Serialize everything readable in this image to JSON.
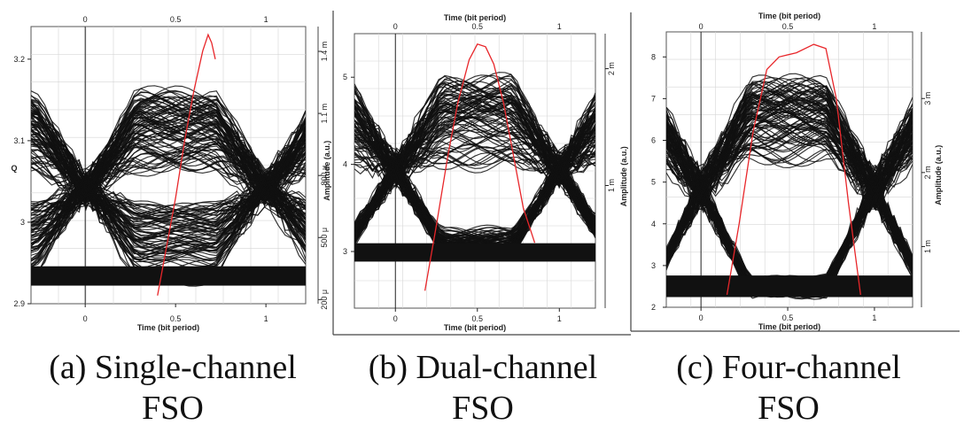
{
  "chart_data": [
    {
      "type": "eye-diagram",
      "xlabel_top": "",
      "xlabel_bottom": "Time (bit period)",
      "ylabel_left": "Q",
      "ylabel_right": "Amplitude (a.u.)",
      "x_ticks": [
        "0",
        "0.5",
        "1"
      ],
      "y_left_ticks": [
        "3.2",
        "3.1",
        "3",
        "2.9"
      ],
      "y_right_ticks": [
        "1.4 m",
        "1.1 m",
        "800 μ",
        "500 μ",
        "200 μ"
      ],
      "xlim": [
        -0.3,
        1.22
      ],
      "ylim_left": [
        2.9,
        3.24
      ],
      "ylim_right": [
        0.00018,
        0.00152
      ],
      "eye": {
        "top_rail": 0.00116,
        "bottom_rail": 0.00031,
        "opening_low": 0.00066,
        "opening_high": 0.00082,
        "crossing_x": [
          0.0,
          1.0
        ]
      },
      "q_curve": {
        "x": [
          0.4,
          0.45,
          0.5,
          0.55,
          0.6,
          0.65,
          0.68,
          0.7,
          0.72
        ],
        "y": [
          2.91,
          2.97,
          3.03,
          3.1,
          3.16,
          3.21,
          3.23,
          3.22,
          3.2
        ]
      },
      "caption": [
        "(a) Single-channel",
        "FSO"
      ]
    },
    {
      "type": "eye-diagram",
      "xlabel_top": "Time (bit period)",
      "xlabel_bottom": "Time (bit period)",
      "ylabel_left": "",
      "ylabel_right": "Amplitude (a.u.)",
      "x_ticks": [
        "0",
        "0.5",
        "1"
      ],
      "y_left_ticks": [
        "5",
        "4",
        "3"
      ],
      "y_right_ticks": [
        "2 m",
        "1 m"
      ],
      "xlim": [
        -0.25,
        1.22
      ],
      "ylim_left": [
        2.35,
        5.5
      ],
      "ylim_right": [
        -5e-05,
        0.0023
      ],
      "eye": {
        "top_rail": 0.00185,
        "bottom_rail": 0.00042,
        "opening_low": 0.0006,
        "opening_high": 0.00118,
        "crossing_x": [
          0.0,
          1.0
        ]
      },
      "q_curve": {
        "x": [
          0.18,
          0.25,
          0.32,
          0.38,
          0.45,
          0.5,
          0.55,
          0.6,
          0.66,
          0.72,
          0.78,
          0.85
        ],
        "y": [
          2.55,
          3.3,
          4.1,
          4.7,
          5.2,
          5.38,
          5.35,
          5.15,
          4.7,
          4.1,
          3.5,
          3.1
        ]
      },
      "caption": [
        "(b) Dual-channel",
        "FSO"
      ]
    },
    {
      "type": "eye-diagram",
      "xlabel_top": "Time (bit period)",
      "xlabel_bottom": "Time (bit period)",
      "ylabel_left": "",
      "ylabel_right": "Amplitude (a.u.)",
      "x_ticks": [
        "0",
        "0.5",
        "1"
      ],
      "y_left_ticks": [
        "8",
        "7",
        "6",
        "5",
        "4",
        "3",
        "2"
      ],
      "y_right_ticks": [
        "3 m",
        "2 m",
        "1 m"
      ],
      "xlim": [
        -0.2,
        1.22
      ],
      "ylim_left": [
        2.0,
        8.6
      ],
      "ylim_right": [
        0.00018,
        0.0039
      ],
      "eye": {
        "top_rail": 0.0031,
        "bottom_rail": 0.00045,
        "opening_low": 0.0005,
        "opening_high": 0.0022,
        "crossing_x": [
          0.0,
          1.0
        ]
      },
      "q_curve": {
        "x": [
          0.15,
          0.22,
          0.3,
          0.38,
          0.45,
          0.55,
          0.65,
          0.72,
          0.78,
          0.85,
          0.92
        ],
        "y": [
          2.3,
          4.0,
          6.2,
          7.7,
          8.0,
          8.1,
          8.3,
          8.2,
          7.0,
          4.5,
          2.3
        ]
      },
      "caption": [
        "(c) Four-channel",
        "FSO"
      ]
    }
  ]
}
